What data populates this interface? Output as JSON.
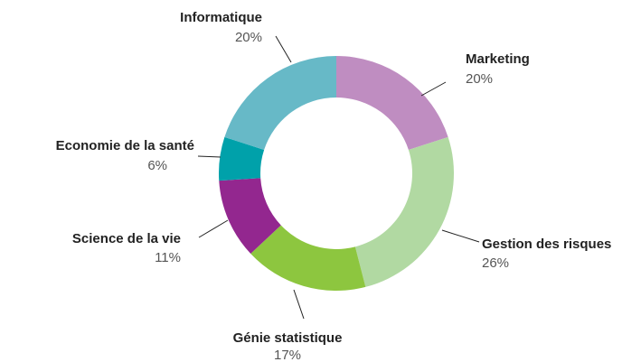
{
  "chart_data": {
    "type": "donut",
    "categories": [
      "Marketing",
      "Gestion des risques",
      "Génie statistique",
      "Science de la vie",
      "Economie de la santé",
      "Informatique"
    ],
    "values": [
      20,
      26,
      17,
      11,
      6,
      20
    ],
    "value_labels": [
      "20%",
      "26%",
      "17%",
      "11%",
      "6%",
      "20%"
    ],
    "colors": [
      "#bf8dc1",
      "#b1d9a2",
      "#8dc63f",
      "#93278f",
      "#00a1aa",
      "#67b9c7"
    ]
  }
}
